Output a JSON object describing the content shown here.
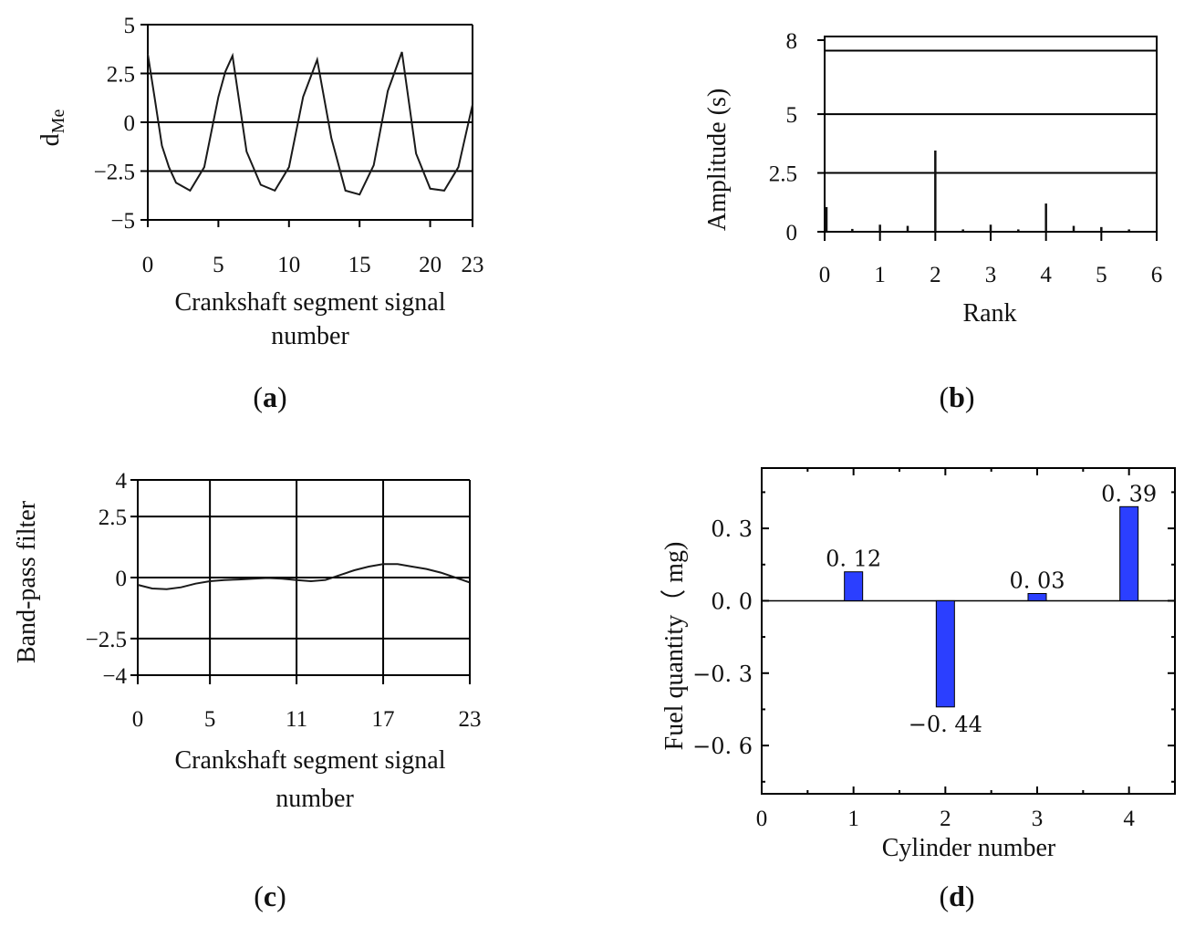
{
  "chart_data": [
    {
      "panel": "a",
      "type": "line",
      "ylabel_main": "d",
      "ylabel_sub": "Me",
      "xlabel_lines": [
        "Crankshaft segment signal",
        "number"
      ],
      "xlim": [
        0,
        23
      ],
      "ylim": [
        -5,
        5
      ],
      "xticks": [
        0,
        5,
        10,
        15,
        20,
        23
      ],
      "yticks": [
        5,
        2.5,
        0,
        -2.5,
        -5
      ],
      "ytick_labels": [
        "5",
        "2.5",
        "0",
        "−2.5",
        "−5"
      ],
      "grid_y": [
        2.5,
        0,
        -2.5
      ],
      "x": [
        0,
        0.5,
        1,
        1.5,
        2,
        3,
        4,
        5,
        5.5,
        6,
        7,
        8,
        9,
        10,
        11,
        12,
        13,
        14,
        15,
        16,
        17,
        18,
        19,
        20,
        21,
        22,
        23
      ],
      "y": [
        3.5,
        1.2,
        -1.2,
        -2.3,
        -3.1,
        -3.5,
        -2.3,
        1.3,
        2.6,
        3.4,
        -1.5,
        -3.2,
        -3.5,
        -2.3,
        1.3,
        3.2,
        -0.8,
        -3.5,
        -3.7,
        -2.2,
        1.6,
        3.6,
        -1.6,
        -3.4,
        -3.5,
        -2.3,
        0.9
      ],
      "label_prefix": "(",
      "label_letter": "a",
      "label_suffix": ")"
    },
    {
      "panel": "b",
      "type": "bar",
      "ylabel": "Amplitude (s)",
      "xlabel": "Rank",
      "xlim": [
        0,
        6
      ],
      "ylim": [
        0,
        8.3
      ],
      "xticks": [
        0,
        1,
        2,
        3,
        4,
        5,
        6
      ],
      "yticks": [
        8,
        5,
        2.5,
        0
      ],
      "grid_y": [
        7.7,
        5,
        2.5
      ],
      "x": [
        0,
        0.5,
        1,
        1.5,
        2,
        2.5,
        3,
        3.5,
        4,
        4.5,
        5,
        5.5
      ],
      "values": [
        1.05,
        0.12,
        0.3,
        0.25,
        3.45,
        0.1,
        0.3,
        0.1,
        1.2,
        0.25,
        0.2,
        0.1
      ],
      "label_prefix": "(",
      "label_letter": "b",
      "label_suffix": ")"
    },
    {
      "panel": "c",
      "type": "line",
      "ylabel": "Band-pass filter",
      "xlabel_lines": [
        "Crankshaft segment signal",
        "number"
      ],
      "xlim": [
        0,
        23
      ],
      "ylim": [
        -4,
        4
      ],
      "xticks": [
        0,
        5,
        11,
        17,
        23
      ],
      "yticks": [
        4,
        2.5,
        0,
        -2.5,
        -4
      ],
      "ytick_labels": [
        "4",
        "2.5",
        "0",
        "−2.5",
        "−4"
      ],
      "grid_y": [
        2.5,
        0,
        -2.5
      ],
      "grid_x": [
        5,
        11,
        17
      ],
      "x": [
        0,
        1,
        2,
        3,
        4,
        5,
        6,
        7,
        8,
        9,
        10,
        11,
        12,
        13,
        14,
        15,
        16,
        17,
        18,
        19,
        20,
        21,
        22,
        23
      ],
      "y": [
        -0.3,
        -0.45,
        -0.48,
        -0.4,
        -0.25,
        -0.15,
        -0.1,
        -0.08,
        -0.05,
        -0.02,
        -0.05,
        -0.1,
        -0.15,
        -0.1,
        0.1,
        0.3,
        0.45,
        0.55,
        0.55,
        0.45,
        0.35,
        0.2,
        0.0,
        -0.2
      ],
      "label_prefix": "(",
      "label_letter": "c",
      "label_suffix": ")"
    },
    {
      "panel": "d",
      "type": "bar",
      "ylabel": "Fuel quantity（ mg)",
      "xlabel": "Cylinder number",
      "xlim": [
        0,
        4.5
      ],
      "ylim": [
        -0.8,
        0.55
      ],
      "xticks": [
        0,
        1,
        2,
        3,
        4
      ],
      "yticks": [
        0.3,
        0.0,
        -0.3,
        -0.6
      ],
      "ytick_labels": [
        "0. 3",
        "0. 0",
        "−0. 3",
        "−0. 6"
      ],
      "categories": [
        "1",
        "2",
        "3",
        "4"
      ],
      "values": [
        0.12,
        -0.44,
        0.03,
        0.39
      ],
      "data_labels": [
        "0. 12",
        "−0. 44",
        "0. 03",
        "0. 39"
      ],
      "bar_color": "#2b3fff",
      "label_prefix": "(",
      "label_letter": "d",
      "label_suffix": ")"
    }
  ]
}
